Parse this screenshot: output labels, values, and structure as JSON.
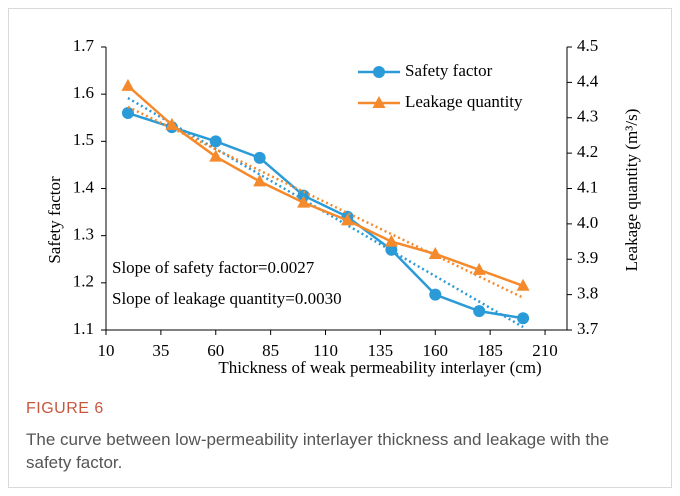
{
  "chart_data": {
    "type": "line",
    "x_label": "Thickness of weak permeability interlayer (cm)",
    "y_label": "Safety factor",
    "y2_label": "Leakage quantity (m³/s)",
    "x": [
      20,
      40,
      60,
      80,
      100,
      120,
      140,
      160,
      180,
      200
    ],
    "series": [
      {
        "name": "Safety factor",
        "color": "#2b9bd8",
        "marker": "circle",
        "values": [
          1.56,
          1.53,
          1.5,
          1.465,
          1.385,
          1.34,
          1.27,
          1.175,
          1.14,
          1.125
        ]
      },
      {
        "name": "Leakage quantity",
        "color": "#f58a2c",
        "marker": "triangle",
        "axis": "y2",
        "values": [
          4.39,
          4.28,
          4.19,
          4.12,
          4.06,
          4.01,
          3.95,
          3.915,
          3.87,
          3.825
        ]
      }
    ],
    "trendline": true,
    "annotations": [
      "Slope of safety factor=0.0027",
      "Slope of leakage quantity=0.0030"
    ],
    "xlim": [
      10,
      220
    ],
    "xticks": [
      10,
      35,
      60,
      85,
      110,
      135,
      160,
      185,
      210
    ],
    "ylim": [
      1.1,
      1.7
    ],
    "yticks": [
      1.1,
      1.2,
      1.3,
      1.4,
      1.5,
      1.6,
      1.7
    ],
    "y2lim": [
      3.7,
      4.5
    ],
    "y2ticks": [
      3.7,
      3.8,
      3.9,
      {
        "value": 4,
        "label": "4.0"
      },
      4.1,
      4.2,
      4.3,
      4.4,
      4.5
    ],
    "legend": "top-right"
  },
  "caption": {
    "label": "FIGURE 6",
    "text": "The curve between low-permeability interlayer thickness and leakage with the safety factor."
  }
}
